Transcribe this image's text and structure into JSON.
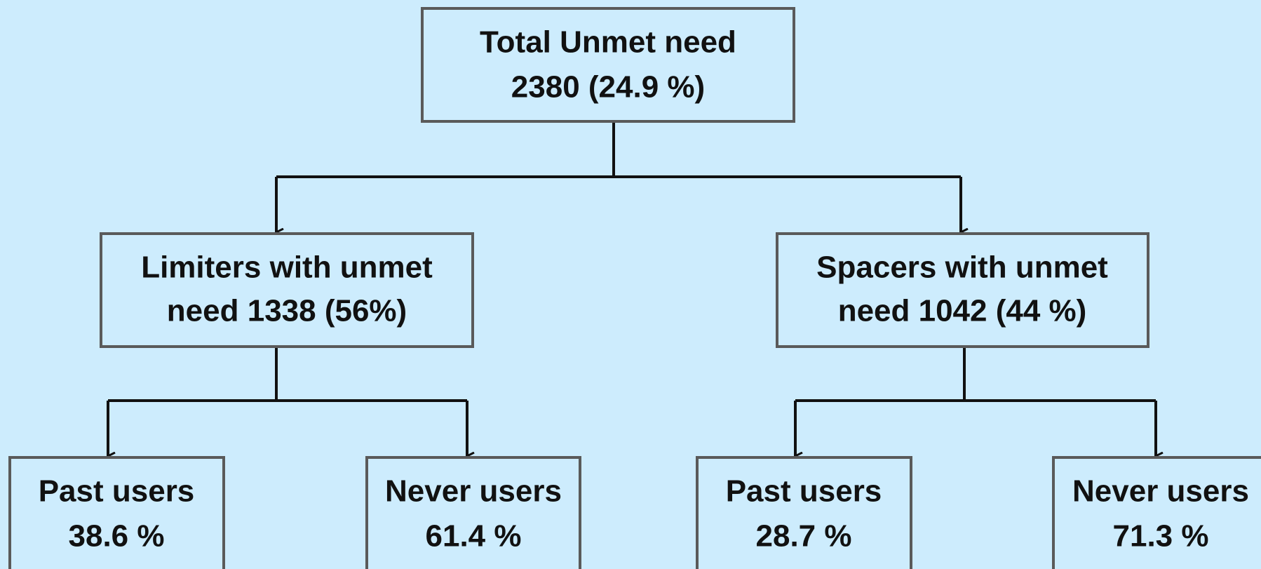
{
  "nodes": [
    {
      "lines": [
        "Total Unmet need",
        "2380 (24.9 %)"
      ]
    },
    {
      "lines": [
        "Limiters with unmet",
        "need 1338 (56%)"
      ]
    },
    {
      "lines": [
        "Spacers with unmet",
        "need 1042 (44 %)"
      ]
    },
    {
      "lines": [
        "Past users",
        "38.6 %"
      ]
    },
    {
      "lines": [
        "Never users",
        "61.4 %"
      ]
    },
    {
      "lines": [
        "Past users",
        "28.7 %"
      ]
    },
    {
      "lines": [
        "Never users",
        "71.3 %"
      ]
    }
  ]
}
